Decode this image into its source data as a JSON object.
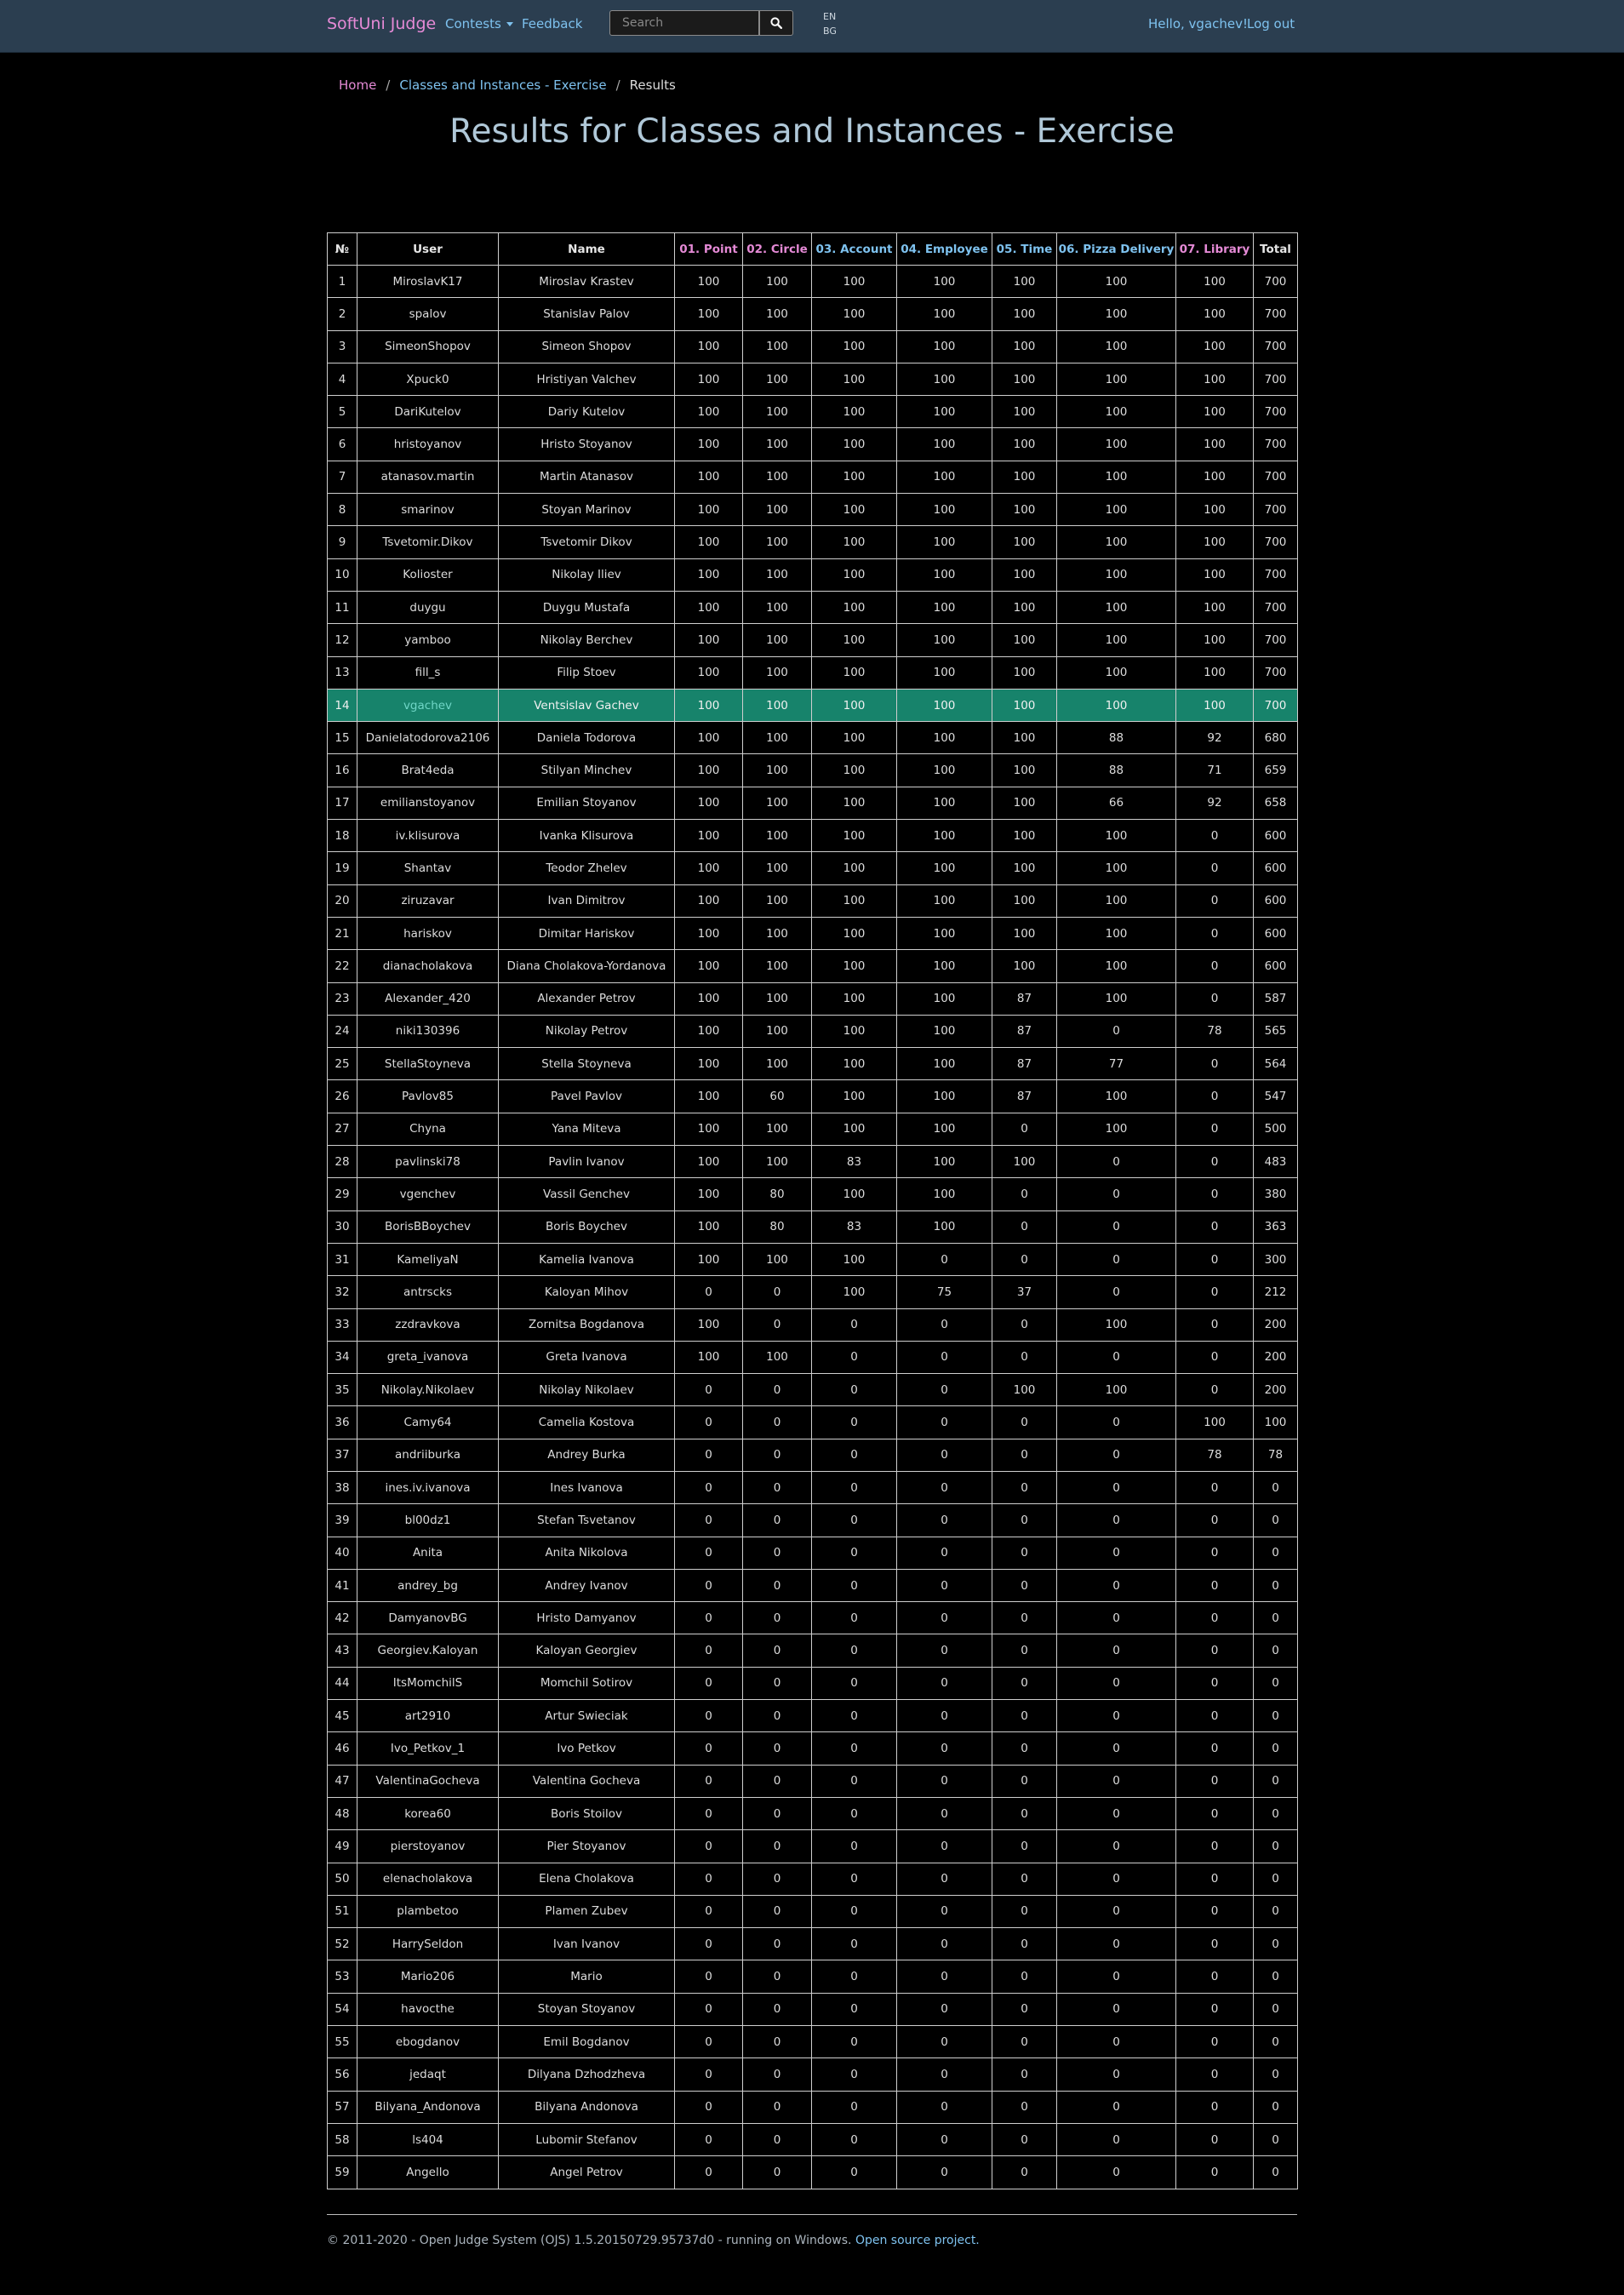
{
  "nav": {
    "brand": "SoftUni Judge",
    "contests": "Contests",
    "feedback": "Feedback",
    "search_placeholder": "Search",
    "lang_en": "EN",
    "lang_bg": "BG",
    "hello": "Hello, vgachev!",
    "logout": "Log out"
  },
  "breadcrumb": {
    "home": "Home",
    "contest": "Classes and Instances - Exercise",
    "current": "Results",
    "separator": "/"
  },
  "title": "Results for Classes and Instances - Exercise",
  "table": {
    "headers": [
      "№",
      "User",
      "Name",
      "01. Point",
      "02. Circle",
      "03. Account",
      "04. Employee",
      "05. Time",
      "06. Pizza Delivery",
      "07. Library",
      "Total"
    ],
    "highlight_user": "vgachev",
    "rows": [
      [
        "1",
        "MiroslavK17",
        "Miroslav Krastev",
        "100",
        "100",
        "100",
        "100",
        "100",
        "100",
        "100",
        "700"
      ],
      [
        "2",
        "spalov",
        "Stanislav Palov",
        "100",
        "100",
        "100",
        "100",
        "100",
        "100",
        "100",
        "700"
      ],
      [
        "3",
        "SimeonShopov",
        "Simeon Shopov",
        "100",
        "100",
        "100",
        "100",
        "100",
        "100",
        "100",
        "700"
      ],
      [
        "4",
        "Xpuck0",
        "Hristiyan Valchev",
        "100",
        "100",
        "100",
        "100",
        "100",
        "100",
        "100",
        "700"
      ],
      [
        "5",
        "DariKutelov",
        "Dariy Kutelov",
        "100",
        "100",
        "100",
        "100",
        "100",
        "100",
        "100",
        "700"
      ],
      [
        "6",
        "hristoyanov",
        "Hristo Stoyanov",
        "100",
        "100",
        "100",
        "100",
        "100",
        "100",
        "100",
        "700"
      ],
      [
        "7",
        "atanasov.martin",
        "Martin Atanasov",
        "100",
        "100",
        "100",
        "100",
        "100",
        "100",
        "100",
        "700"
      ],
      [
        "8",
        "smarinov",
        "Stoyan Marinov",
        "100",
        "100",
        "100",
        "100",
        "100",
        "100",
        "100",
        "700"
      ],
      [
        "9",
        "Tsvetomir.Dikov",
        "Tsvetomir Dikov",
        "100",
        "100",
        "100",
        "100",
        "100",
        "100",
        "100",
        "700"
      ],
      [
        "10",
        "Kolioster",
        "Nikolay Iliev",
        "100",
        "100",
        "100",
        "100",
        "100",
        "100",
        "100",
        "700"
      ],
      [
        "11",
        "duygu",
        "Duygu Mustafa",
        "100",
        "100",
        "100",
        "100",
        "100",
        "100",
        "100",
        "700"
      ],
      [
        "12",
        "yamboo",
        "Nikolay Berchev",
        "100",
        "100",
        "100",
        "100",
        "100",
        "100",
        "100",
        "700"
      ],
      [
        "13",
        "fill_s",
        "Filip Stoev",
        "100",
        "100",
        "100",
        "100",
        "100",
        "100",
        "100",
        "700"
      ],
      [
        "14",
        "vgachev",
        "Ventsislav Gachev",
        "100",
        "100",
        "100",
        "100",
        "100",
        "100",
        "100",
        "700"
      ],
      [
        "15",
        "Danielatodorova2106",
        "Daniela Todorova",
        "100",
        "100",
        "100",
        "100",
        "100",
        "88",
        "92",
        "680"
      ],
      [
        "16",
        "Brat4eda",
        "Stilyan Minchev",
        "100",
        "100",
        "100",
        "100",
        "100",
        "88",
        "71",
        "659"
      ],
      [
        "17",
        "emilianstoyanov",
        "Emilian Stoyanov",
        "100",
        "100",
        "100",
        "100",
        "100",
        "66",
        "92",
        "658"
      ],
      [
        "18",
        "iv.klisurova",
        "Ivanka Klisurova",
        "100",
        "100",
        "100",
        "100",
        "100",
        "100",
        "0",
        "600"
      ],
      [
        "19",
        "Shantav",
        "Teodor Zhelev",
        "100",
        "100",
        "100",
        "100",
        "100",
        "100",
        "0",
        "600"
      ],
      [
        "20",
        "ziruzavar",
        "Ivan Dimitrov",
        "100",
        "100",
        "100",
        "100",
        "100",
        "100",
        "0",
        "600"
      ],
      [
        "21",
        "hariskov",
        "Dimitar Hariskov",
        "100",
        "100",
        "100",
        "100",
        "100",
        "100",
        "0",
        "600"
      ],
      [
        "22",
        "dianacholakova",
        "Diana Cholakova-Yordanova",
        "100",
        "100",
        "100",
        "100",
        "100",
        "100",
        "0",
        "600"
      ],
      [
        "23",
        "Alexander_420",
        "Alexander Petrov",
        "100",
        "100",
        "100",
        "100",
        "87",
        "100",
        "0",
        "587"
      ],
      [
        "24",
        "niki130396",
        "Nikolay Petrov",
        "100",
        "100",
        "100",
        "100",
        "87",
        "0",
        "78",
        "565"
      ],
      [
        "25",
        "StellaStoyneva",
        "Stella Stoyneva",
        "100",
        "100",
        "100",
        "100",
        "87",
        "77",
        "0",
        "564"
      ],
      [
        "26",
        "Pavlov85",
        "Pavel Pavlov",
        "100",
        "60",
        "100",
        "100",
        "87",
        "100",
        "0",
        "547"
      ],
      [
        "27",
        "Chyna",
        "Yana Miteva",
        "100",
        "100",
        "100",
        "100",
        "0",
        "100",
        "0",
        "500"
      ],
      [
        "28",
        "pavlinski78",
        "Pavlin Ivanov",
        "100",
        "100",
        "83",
        "100",
        "100",
        "0",
        "0",
        "483"
      ],
      [
        "29",
        "vgenchev",
        "Vassil Genchev",
        "100",
        "80",
        "100",
        "100",
        "0",
        "0",
        "0",
        "380"
      ],
      [
        "30",
        "BorisBBoychev",
        "Boris Boychev",
        "100",
        "80",
        "83",
        "100",
        "0",
        "0",
        "0",
        "363"
      ],
      [
        "31",
        "KameliyaN",
        "Kamelia Ivanova",
        "100",
        "100",
        "100",
        "0",
        "0",
        "0",
        "0",
        "300"
      ],
      [
        "32",
        "antrscks",
        "Kaloyan Mihov",
        "0",
        "0",
        "100",
        "75",
        "37",
        "0",
        "0",
        "212"
      ],
      [
        "33",
        "zzdravkova",
        "Zornitsa Bogdanova",
        "100",
        "0",
        "0",
        "0",
        "0",
        "100",
        "0",
        "200"
      ],
      [
        "34",
        "greta_ivanova",
        "Greta Ivanova",
        "100",
        "100",
        "0",
        "0",
        "0",
        "0",
        "0",
        "200"
      ],
      [
        "35",
        "Nikolay.Nikolaev",
        "Nikolay Nikolaev",
        "0",
        "0",
        "0",
        "0",
        "100",
        "100",
        "0",
        "200"
      ],
      [
        "36",
        "Camy64",
        "Camelia Kostova",
        "0",
        "0",
        "0",
        "0",
        "0",
        "0",
        "100",
        "100"
      ],
      [
        "37",
        "andriiburka",
        "Andrey Burka",
        "0",
        "0",
        "0",
        "0",
        "0",
        "0",
        "78",
        "78"
      ],
      [
        "38",
        "ines.iv.ivanova",
        "Ines Ivanova",
        "0",
        "0",
        "0",
        "0",
        "0",
        "0",
        "0",
        "0"
      ],
      [
        "39",
        "bl00dz1",
        "Stefan Tsvetanov",
        "0",
        "0",
        "0",
        "0",
        "0",
        "0",
        "0",
        "0"
      ],
      [
        "40",
        "Anita",
        "Anita Nikolova",
        "0",
        "0",
        "0",
        "0",
        "0",
        "0",
        "0",
        "0"
      ],
      [
        "41",
        "andrey_bg",
        "Andrey Ivanov",
        "0",
        "0",
        "0",
        "0",
        "0",
        "0",
        "0",
        "0"
      ],
      [
        "42",
        "DamyanovBG",
        "Hristo Damyanov",
        "0",
        "0",
        "0",
        "0",
        "0",
        "0",
        "0",
        "0"
      ],
      [
        "43",
        "Georgiev.Kaloyan",
        "Kaloyan Georgiev",
        "0",
        "0",
        "0",
        "0",
        "0",
        "0",
        "0",
        "0"
      ],
      [
        "44",
        "ItsMomchilS",
        "Momchil Sotirov",
        "0",
        "0",
        "0",
        "0",
        "0",
        "0",
        "0",
        "0"
      ],
      [
        "45",
        "art2910",
        "Artur Swieciak",
        "0",
        "0",
        "0",
        "0",
        "0",
        "0",
        "0",
        "0"
      ],
      [
        "46",
        "Ivo_Petkov_1",
        "Ivo Petkov",
        "0",
        "0",
        "0",
        "0",
        "0",
        "0",
        "0",
        "0"
      ],
      [
        "47",
        "ValentinaGocheva",
        "Valentina Gocheva",
        "0",
        "0",
        "0",
        "0",
        "0",
        "0",
        "0",
        "0"
      ],
      [
        "48",
        "korea60",
        "Boris Stoilov",
        "0",
        "0",
        "0",
        "0",
        "0",
        "0",
        "0",
        "0"
      ],
      [
        "49",
        "pierstoyanov",
        "Pier Stoyanov",
        "0",
        "0",
        "0",
        "0",
        "0",
        "0",
        "0",
        "0"
      ],
      [
        "50",
        "elenacholakova",
        "Elena Cholakova",
        "0",
        "0",
        "0",
        "0",
        "0",
        "0",
        "0",
        "0"
      ],
      [
        "51",
        "plambetoo",
        "Plamen Zubev",
        "0",
        "0",
        "0",
        "0",
        "0",
        "0",
        "0",
        "0"
      ],
      [
        "52",
        "HarrySeldon",
        "Ivan Ivanov",
        "0",
        "0",
        "0",
        "0",
        "0",
        "0",
        "0",
        "0"
      ],
      [
        "53",
        "Mario206",
        "Mario",
        "0",
        "0",
        "0",
        "0",
        "0",
        "0",
        "0",
        "0"
      ],
      [
        "54",
        "havocthe",
        "Stoyan Stoyanov",
        "0",
        "0",
        "0",
        "0",
        "0",
        "0",
        "0",
        "0"
      ],
      [
        "55",
        "ebogdanov",
        "Emil Bogdanov",
        "0",
        "0",
        "0",
        "0",
        "0",
        "0",
        "0",
        "0"
      ],
      [
        "56",
        "jedaqt",
        "Dilyana Dzhodzheva",
        "0",
        "0",
        "0",
        "0",
        "0",
        "0",
        "0",
        "0"
      ],
      [
        "57",
        "Bilyana_Andonova",
        "Bilyana Andonova",
        "0",
        "0",
        "0",
        "0",
        "0",
        "0",
        "0",
        "0"
      ],
      [
        "58",
        "ls404",
        "Lubomir Stefanov",
        "0",
        "0",
        "0",
        "0",
        "0",
        "0",
        "0",
        "0"
      ],
      [
        "59",
        "Angello",
        "Angel Petrov",
        "0",
        "0",
        "0",
        "0",
        "0",
        "0",
        "0",
        "0"
      ]
    ]
  },
  "footer": {
    "text": "© 2011-2020 - Open Judge System (OJS) 1.5.20150729.95737d0 - running on Windows.",
    "link": "Open source project."
  }
}
